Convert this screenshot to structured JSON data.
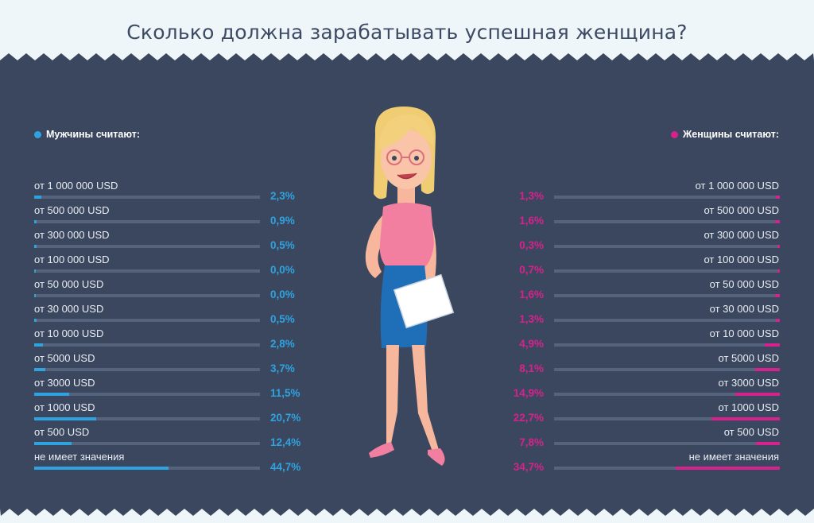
{
  "title": "Сколько должна зарабатывать успешная женщина?",
  "colors": {
    "background_top": "#eef6f9",
    "panel": "#3b475e",
    "men": "#2ea3e0",
    "women": "#d6228c",
    "track": "#55647c"
  },
  "chart_data": {
    "type": "bar",
    "orientation": "horizontal",
    "title": "Сколько должна зарабатывать успешная женщина?",
    "categories": [
      "от 1 000 000 USD",
      "от 500 000 USD",
      "от 300 000 USD",
      "от 100 000 USD",
      "от 50 000 USD",
      "от 30 000 USD",
      "от 10 000 USD",
      "от 5000 USD",
      "от 3000 USD",
      "от 1000 USD",
      "от 500 USD",
      "не имеет значения"
    ],
    "series": [
      {
        "name": "Мужчины считают:",
        "values": [
          2.3,
          0.9,
          0.5,
          0.0,
          0.0,
          0.5,
          2.8,
          3.7,
          11.5,
          20.7,
          12.4,
          44.7
        ],
        "labels": [
          "2,3%",
          "0,9%",
          "0,5%",
          "0,0%",
          "0,0%",
          "0,5%",
          "2,8%",
          "3,7%",
          "11,5%",
          "20,7%",
          "12,4%",
          "44,7%"
        ],
        "color": "#2ea3e0"
      },
      {
        "name": "Женщины считают:",
        "values": [
          1.3,
          1.6,
          0.3,
          0.7,
          1.6,
          1.3,
          4.9,
          8.1,
          14.9,
          22.7,
          7.8,
          34.7
        ],
        "labels": [
          "1,3%",
          "1,6%",
          "0,3%",
          "0,7%",
          "1,6%",
          "1,3%",
          "4,9%",
          "8,1%",
          "14,9%",
          "22,7%",
          "7,8%",
          "34,7%"
        ],
        "color": "#d6228c"
      }
    ],
    "xlim": [
      0,
      100
    ]
  }
}
